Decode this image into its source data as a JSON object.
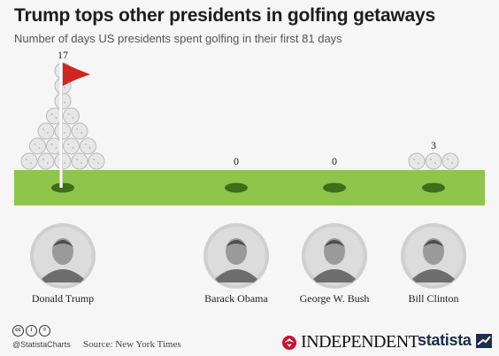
{
  "chart_data": {
    "type": "pictogram-bar",
    "title": "Trump tops other presidents in golfing getaways",
    "subtitle": "Number of days US presidents spent golfing in their first 81 days",
    "categories": [
      "Donald Trump",
      "Barack Obama",
      "George W. Bush",
      "Bill Clinton"
    ],
    "values": [
      17,
      0,
      0,
      3
    ]
  },
  "footer": {
    "handle": "@StatistaCharts",
    "source": "Source: New York Times",
    "cc_icons": [
      "cc",
      "i",
      "="
    ],
    "publisher": "INDEPENDENT",
    "brand": "statista"
  },
  "colors": {
    "grass": "#8ec54a",
    "grass_dark": "#6fa33a",
    "hole": "#3f6d1c",
    "flag": "#d0261f",
    "ball": "#e7e7e7",
    "ball_outline": "#b9b9b9",
    "portrait_bg": "#dcdcdc"
  }
}
